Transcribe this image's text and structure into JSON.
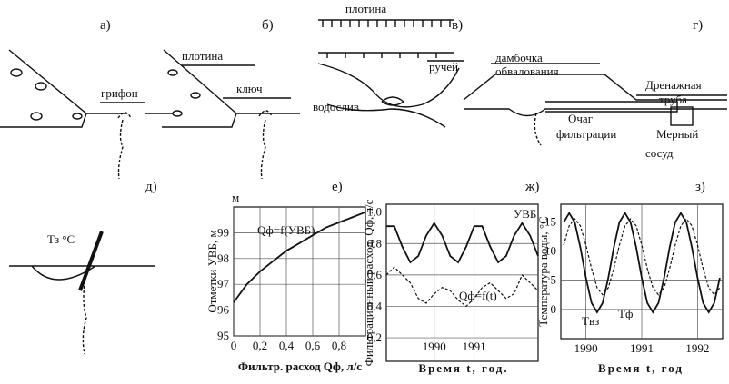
{
  "sketches": [
    {
      "label": "а)",
      "texts": [
        "грифон"
      ]
    },
    {
      "label": "б)",
      "texts": [
        "плотина",
        "ключ"
      ]
    },
    {
      "label": "в)",
      "texts": [
        "плотина",
        "ручей",
        "водослив"
      ]
    },
    {
      "label": "г)",
      "texts": [
        "дамбочка",
        "обвалования",
        "Дренажная",
        "труба",
        "Очаг",
        "фильтрации",
        "Мерный",
        "сосуд"
      ]
    },
    {
      "label": "д)",
      "texts": [
        "Tз °C"
      ]
    }
  ],
  "chart_data": [
    {
      "type": "line",
      "label": "е)",
      "y_unit": "м",
      "ylabel": "Отметки УВБ, м",
      "xlabel": "Фильтр. расход Qф, л/с",
      "x": [
        0,
        0.1,
        0.2,
        0.3,
        0.4,
        0.5,
        0.6,
        0.7,
        0.8,
        0.9,
        1.0
      ],
      "series": [
        {
          "name": "Qф=f(УВБ)",
          "color": "#111",
          "values": [
            96.3,
            97.0,
            97.5,
            97.9,
            98.3,
            98.6,
            98.9,
            99.2,
            99.4,
            99.6,
            99.8
          ]
        }
      ],
      "xlim": [
        0,
        1
      ],
      "ylim": [
        95,
        100
      ],
      "xticks": [
        0,
        {
          "value": 0.2,
          "label": "0,2"
        },
        {
          "value": 0.4,
          "label": "0,4"
        },
        {
          "value": 0.6,
          "label": "0,6"
        },
        {
          "value": 0.8,
          "label": "0,8"
        }
      ],
      "yticks": [
        95,
        96,
        97,
        98,
        99
      ],
      "grid": true
    },
    {
      "type": "line",
      "label": "ж)",
      "ylabel": "Фильтрационный расход, Qф, л/с",
      "xlabel": "Время t, год.",
      "x": [
        1988.8,
        1989.0,
        1989.2,
        1989.4,
        1989.6,
        1989.8,
        1990.0,
        1990.2,
        1990.4,
        1990.6,
        1990.8,
        1991.0,
        1991.2,
        1991.4,
        1991.6,
        1991.8,
        1992.0,
        1992.2,
        1992.4,
        1992.6
      ],
      "series": [
        {
          "name": "УВБ",
          "color": "#111",
          "values": [
            0.91,
            0.91,
            0.78,
            0.68,
            0.72,
            0.85,
            0.93,
            0.85,
            0.72,
            0.68,
            0.78,
            0.91,
            0.91,
            0.78,
            0.68,
            0.72,
            0.85,
            0.93,
            0.85,
            0.72
          ]
        },
        {
          "name": "Qф=f(t)",
          "color": "#111",
          "dashed": true,
          "values": [
            0.6,
            0.65,
            0.6,
            0.55,
            0.45,
            0.42,
            0.48,
            0.52,
            0.5,
            0.44,
            0.4,
            0.45,
            0.52,
            0.55,
            0.5,
            0.45,
            0.48,
            0.6,
            0.55,
            0.5
          ]
        }
      ],
      "xlim": [
        1988.8,
        1992.6
      ],
      "ylim": [
        0.05,
        1.05
      ],
      "xticks": [
        1990,
        1991
      ],
      "yticks": [
        {
          "value": 0.2,
          "label": "0,2"
        },
        {
          "value": 0.4,
          "label": "0,4"
        },
        {
          "value": 0.6,
          "label": "0,6"
        },
        {
          "value": 0.8,
          "label": "0,8"
        },
        {
          "value": 1.0,
          "label": "1,0"
        }
      ],
      "grid": true
    },
    {
      "type": "line",
      "label": "з)",
      "ylabel": "Температура воды, °C",
      "xlabel": "Время t, год",
      "x": [
        1989.6,
        1989.7,
        1989.8,
        1989.9,
        1990.0,
        1990.1,
        1990.2,
        1990.3,
        1990.4,
        1990.5,
        1990.6,
        1990.7,
        1990.8,
        1990.9,
        1991.0,
        1991.1,
        1991.2,
        1991.3,
        1991.4,
        1991.5,
        1991.6,
        1991.7,
        1991.8,
        1991.9,
        1992.0,
        1992.1,
        1992.2,
        1992.3,
        1992.4
      ],
      "series": [
        {
          "name": "Tвз",
          "color": "#111",
          "values": [
            14.9,
            16.5,
            14.9,
            10.6,
            5.4,
            1.1,
            -0.5,
            1.1,
            5.4,
            10.6,
            14.9,
            16.5,
            14.9,
            10.6,
            5.4,
            1.1,
            -0.5,
            1.1,
            5.4,
            10.6,
            14.9,
            16.5,
            14.9,
            10.6,
            5.4,
            1.1,
            -0.5,
            1.1,
            5.4
          ]
        },
        {
          "name": "Tф",
          "color": "#111",
          "dashed": true,
          "values": [
            11.0,
            14.3,
            15.5,
            14.3,
            11.0,
            7.0,
            3.7,
            2.5,
            3.7,
            7.0,
            11.0,
            14.3,
            15.5,
            14.3,
            11.0,
            7.0,
            3.7,
            2.5,
            3.7,
            7.0,
            11.0,
            14.3,
            15.5,
            14.3,
            11.0,
            7.0,
            3.7,
            2.5,
            3.7
          ]
        }
      ],
      "xlim": [
        1989.55,
        1992.45
      ],
      "ylim": [
        -5,
        18
      ],
      "xticks": [
        1990,
        1991,
        1992
      ],
      "yticks": [
        0,
        5,
        10,
        15
      ],
      "grid": true
    }
  ]
}
